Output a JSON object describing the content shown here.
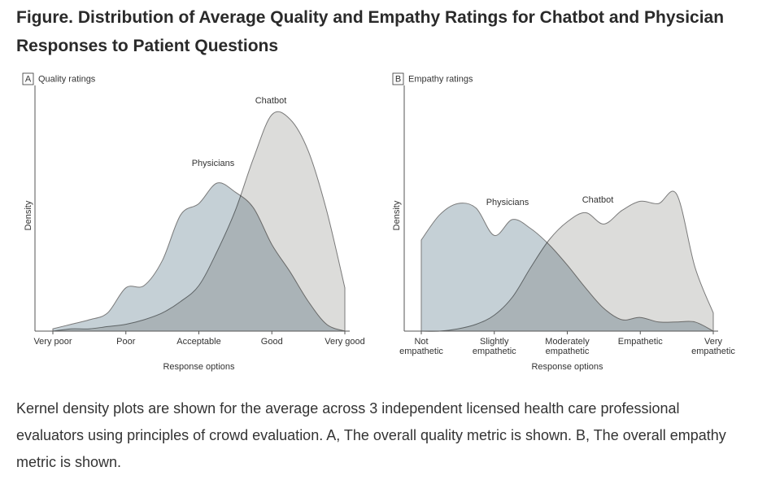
{
  "title": "Figure.  Distribution of Average Quality and Empathy Ratings for Chatbot and Physician Responses to Patient Questions",
  "caption": "Kernel density plots are shown for the average across 3 independent licensed health care professional evaluators using principles of crowd evaluation. A, The overall quality metric is shown. B, The overall empathy metric is shown.",
  "chart_data": [
    {
      "type": "area",
      "panel": "A",
      "title": "Quality ratings",
      "ylabel": "Density",
      "xlabel": "Response options",
      "x": [
        1,
        1.25,
        1.5,
        1.75,
        2,
        2.25,
        2.5,
        2.75,
        3,
        3.25,
        3.5,
        3.75,
        4,
        4.25,
        4.5,
        4.75,
        5
      ],
      "xlim": [
        1,
        5
      ],
      "xticks": [
        {
          "value": 1,
          "label": "Very poor"
        },
        {
          "value": 2,
          "label": "Poor"
        },
        {
          "value": 3,
          "label": "Acceptable"
        },
        {
          "value": 4,
          "label": "Good"
        },
        {
          "value": 5,
          "label": "Very good"
        }
      ],
      "ylim": [
        0,
        1
      ],
      "series": [
        {
          "name": "Physicians",
          "color": "#c5d0d6",
          "values": [
            0.01,
            0.03,
            0.05,
            0.08,
            0.19,
            0.2,
            0.31,
            0.51,
            0.56,
            0.65,
            0.61,
            0.54,
            0.38,
            0.26,
            0.13,
            0.03,
            0
          ]
        },
        {
          "name": "Chatbot",
          "color": "#dcdcda",
          "values": [
            0,
            0.01,
            0.01,
            0.02,
            0.03,
            0.05,
            0.08,
            0.13,
            0.2,
            0.35,
            0.53,
            0.76,
            0.95,
            0.93,
            0.79,
            0.53,
            0.19
          ]
        }
      ]
    },
    {
      "type": "area",
      "panel": "B",
      "title": "Empathy ratings",
      "ylabel": "Density",
      "xlabel": "Response options",
      "x": [
        1,
        1.25,
        1.5,
        1.75,
        2,
        2.25,
        2.5,
        2.75,
        3,
        3.25,
        3.5,
        3.75,
        4,
        4.25,
        4.5,
        4.75,
        5
      ],
      "xlim": [
        1,
        5
      ],
      "xticks": [
        {
          "value": 1,
          "label": "Not empathetic"
        },
        {
          "value": 2,
          "label": "Slightly empathetic"
        },
        {
          "value": 3,
          "label": "Moderately empathetic"
        },
        {
          "value": 4,
          "label": "Empathetic"
        },
        {
          "value": 5,
          "label": "Very empathetic"
        }
      ],
      "ylim": [
        0,
        1
      ],
      "series": [
        {
          "name": "Physicians",
          "color": "#c5d0d6",
          "values": [
            0.4,
            0.51,
            0.56,
            0.54,
            0.42,
            0.49,
            0.45,
            0.38,
            0.29,
            0.19,
            0.1,
            0.05,
            0.06,
            0.04,
            0.04,
            0.04,
            0
          ]
        },
        {
          "name": "Chatbot",
          "color": "#dcdcda",
          "values": [
            0,
            0,
            0.01,
            0.03,
            0.07,
            0.15,
            0.28,
            0.4,
            0.48,
            0.52,
            0.47,
            0.53,
            0.57,
            0.56,
            0.6,
            0.28,
            0.08
          ]
        }
      ]
    }
  ]
}
